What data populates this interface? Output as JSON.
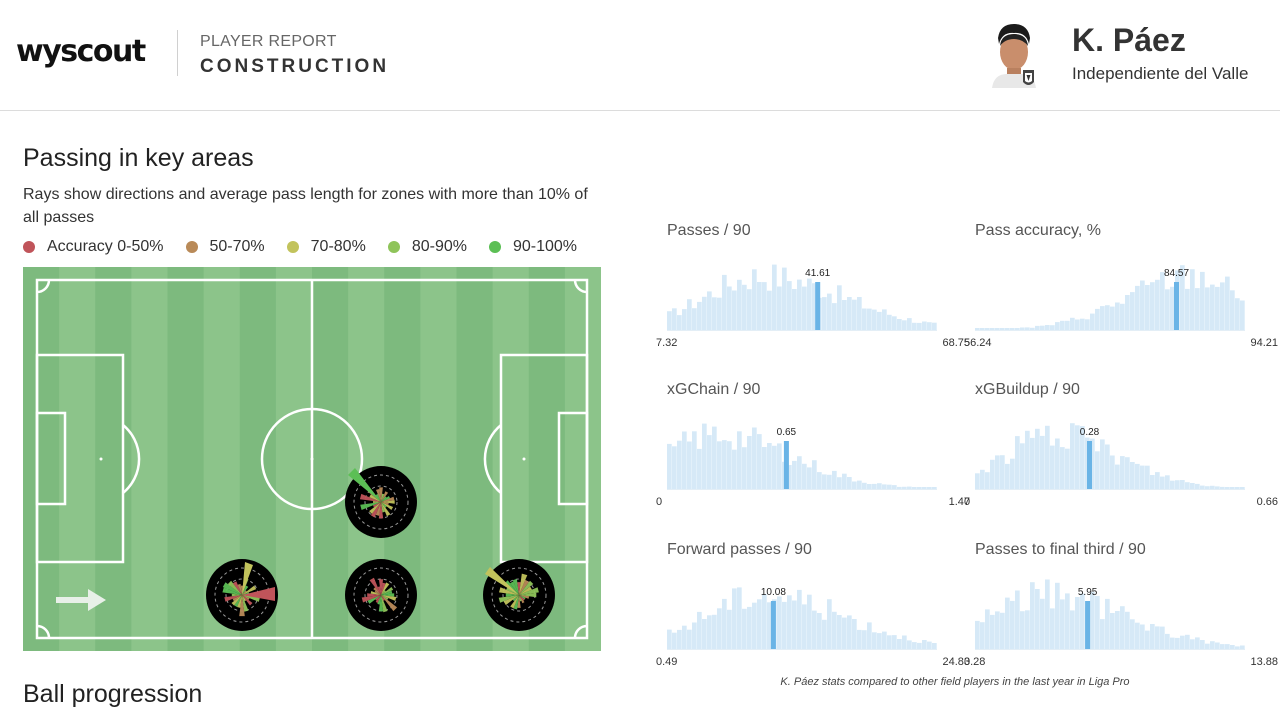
{
  "header": {
    "logo": "wyscout",
    "kicker": "PLAYER REPORT",
    "title": "CONSTRUCTION",
    "player_name": "K. Páez",
    "team": "Independiente del Valle"
  },
  "section": {
    "title": "Passing in key areas",
    "description": "Rays show directions and average pass length for zones with more than 10% of all passes",
    "next_title": "Ball progression"
  },
  "legend": [
    {
      "label": "Accuracy 0-50%",
      "color": "#c0545a"
    },
    {
      "label": "50-70%",
      "color": "#b98a58"
    },
    {
      "label": "70-80%",
      "color": "#c2c35c"
    },
    {
      "label": "80-90%",
      "color": "#8fc45a"
    },
    {
      "label": "90-100%",
      "color": "#5cbf55"
    }
  ],
  "colors": {
    "pitch_dark": "#7dba7e",
    "pitch_light": "#8cc48a",
    "histogram_fill": "#d6e9f7",
    "player_marker": "#6ab4e6"
  },
  "metrics": [
    {
      "label": "Passes / 90",
      "min": "7.32",
      "max": "68.75",
      "value": 41.61,
      "value_label": "41.61",
      "min_num": 7.32,
      "max_num": 68.75
    },
    {
      "label": "Pass accuracy, %",
      "min": "56.24",
      "max": "94.21",
      "value": 84.57,
      "value_label": "84.57",
      "min_num": 56.24,
      "max_num": 94.21
    },
    {
      "label": "xGChain / 90",
      "min": "0",
      "max": "1.47",
      "value": 0.65,
      "value_label": "0.65",
      "min_num": 0,
      "max_num": 1.47
    },
    {
      "label": "xGBuildup / 90",
      "min": "0",
      "max": "0.66",
      "value": 0.28,
      "value_label": "0.28",
      "min_num": 0,
      "max_num": 0.66
    },
    {
      "label": "Forward passes / 90",
      "min": "0.49",
      "max": "24.83",
      "value": 10.08,
      "value_label": "10.08",
      "min_num": 0.49,
      "max_num": 24.83
    },
    {
      "label": "Passes to final third / 90",
      "min": "0.28",
      "max": "13.88",
      "value": 5.95,
      "value_label": "5.95",
      "min_num": 0.28,
      "max_num": 13.88
    }
  ],
  "footnote": "K. Páez stats compared to other field players in the last year in Liga Pro"
}
